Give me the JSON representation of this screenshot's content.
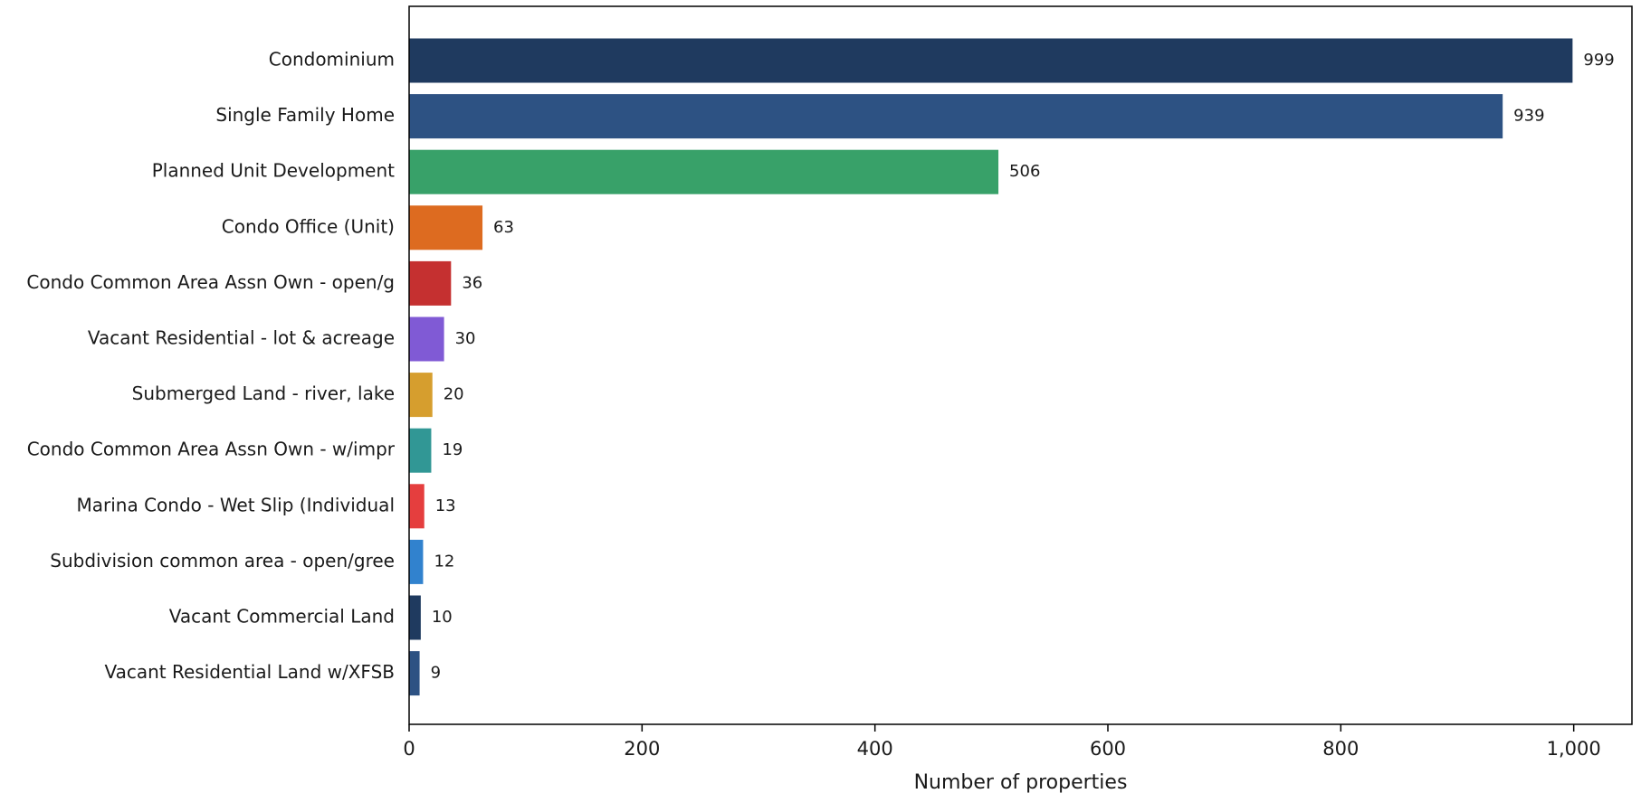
{
  "chart_data": {
    "type": "bar",
    "orientation": "horizontal",
    "title": "",
    "xlabel": "Number of properties",
    "ylabel": "",
    "xlim": [
      0,
      1050
    ],
    "xticks": [
      0,
      200,
      400,
      600,
      800,
      1000
    ],
    "xtick_labels": [
      "0",
      "200",
      "400",
      "600",
      "800",
      "1,000"
    ],
    "grid": false,
    "categories": [
      "Condominium",
      "Single Family Home",
      "Planned Unit Development",
      "Condo Office (Unit)",
      "Condo Common Area Assn Own - open/g",
      "Vacant Residential - lot & acreage ",
      "Submerged Land - river, lake",
      "Condo Common Area Assn Own - w/impr",
      "Marina Condo - Wet Slip (Individual",
      "Subdivision common area - open/gree",
      "Vacant Commercial Land",
      "Vacant Residential Land w/XFSB"
    ],
    "values": [
      999,
      939,
      506,
      63,
      36,
      30,
      20,
      19,
      13,
      12,
      10,
      9
    ],
    "value_labels": [
      "999",
      "939",
      "506",
      "63",
      "36",
      "30",
      "20",
      "19",
      "13",
      "12",
      "10",
      "9"
    ],
    "colors": [
      "#1f3a5f",
      "#2d5283",
      "#38a169",
      "#dd6b20",
      "#c53030",
      "#805ad5",
      "#d69e2e",
      "#319795",
      "#e53e3e",
      "#3182ce",
      "#1f3a5f",
      "#2d5283"
    ]
  }
}
